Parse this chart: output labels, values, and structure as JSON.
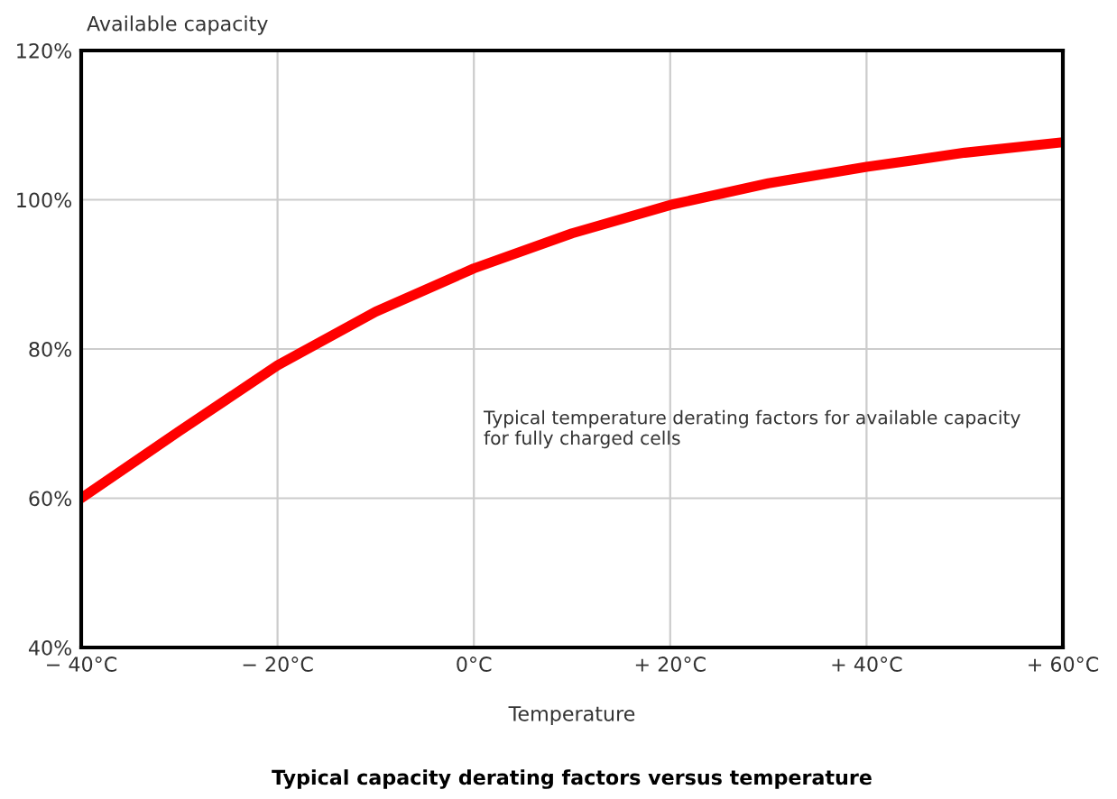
{
  "chart_data": {
    "type": "line",
    "title": "Typical capacity derating factors versus temperature",
    "xlabel": "Temperature",
    "ylabel": "Available capacity",
    "annotations": [
      "Typical temperature derating factors for available capacity\nfor fully charged cells"
    ],
    "x": [
      -40,
      -30,
      -20,
      -10,
      0,
      10,
      20,
      30,
      40,
      50,
      60
    ],
    "series": [
      {
        "color": "#ff0000",
        "values": [
          60,
          69,
          77.8,
          85,
          90.8,
          95.5,
          99.3,
          102.2,
          104.4,
          106.3,
          107.7
        ]
      }
    ],
    "xlim": [
      -40,
      60
    ],
    "ylim": [
      40,
      120
    ],
    "xticks": [
      {
        "value": -40,
        "label": "− 40°C"
      },
      {
        "value": -20,
        "label": "− 20°C"
      },
      {
        "value": 0,
        "label": "0°C"
      },
      {
        "value": 20,
        "label": "+ 20°C"
      },
      {
        "value": 40,
        "label": "+ 40°C"
      },
      {
        "value": 60,
        "label": "+ 60°C"
      }
    ],
    "yticks": [
      {
        "value": 40,
        "label": "40%"
      },
      {
        "value": 60,
        "label": "60%"
      },
      {
        "value": 80,
        "label": "80%"
      },
      {
        "value": 100,
        "label": "100%"
      },
      {
        "value": 120,
        "label": "120%"
      }
    ],
    "grid": true,
    "legend": false
  }
}
